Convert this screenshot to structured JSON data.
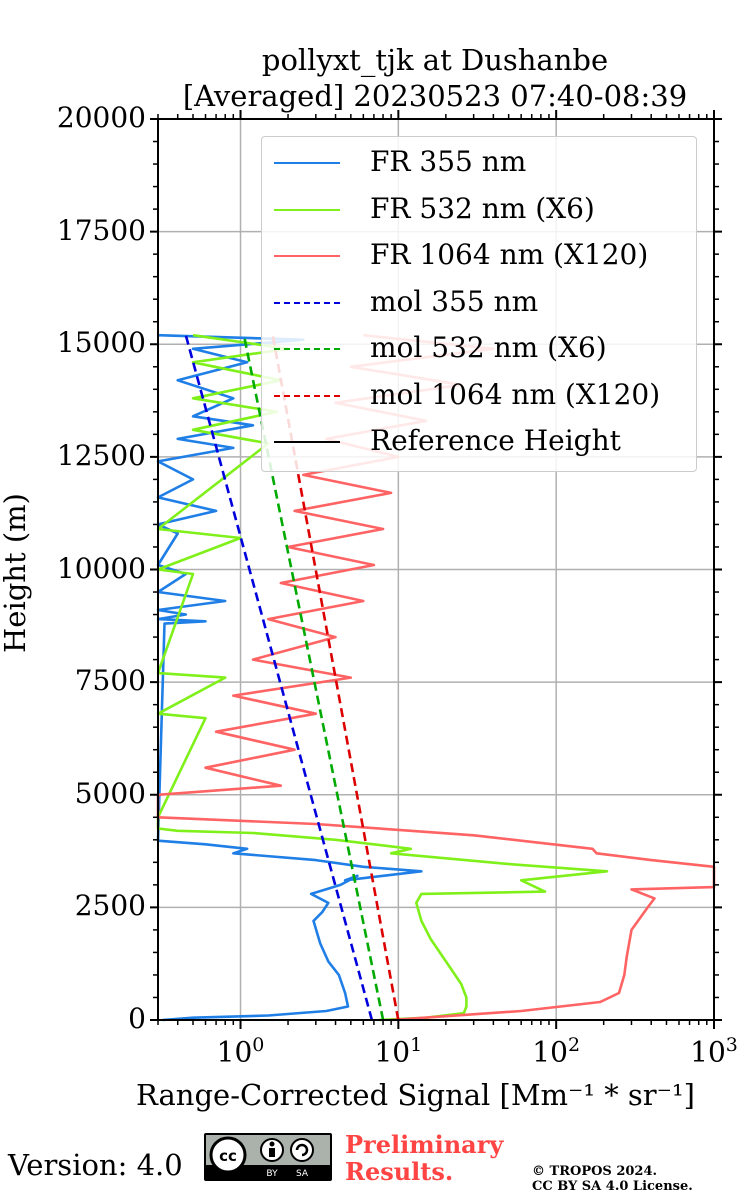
{
  "chart_data": {
    "type": "line",
    "title_line1": "pollyxt_tjk at Dushanbe",
    "title_line2": "[Averaged] 20230523 07:40-08:39",
    "xlabel": "Range-Corrected Signal [Mm⁻¹ * sr⁻¹]",
    "ylabel": "Height (m)",
    "xscale": "log",
    "xlim": [
      0.3,
      1000
    ],
    "ylim": [
      0,
      20000
    ],
    "grid": true,
    "legend_position": "top-right",
    "yticks": [
      "0",
      "2500",
      "5000",
      "7500",
      "10000",
      "12500",
      "15000",
      "17500",
      "20000"
    ],
    "ytick_values": [
      0,
      2500,
      5000,
      7500,
      10000,
      12500,
      15000,
      17500,
      20000
    ],
    "xticks": [
      {
        "base": "10",
        "exp": "0",
        "value": 1
      },
      {
        "base": "10",
        "exp": "1",
        "value": 10
      },
      {
        "base": "10",
        "exp": "2",
        "value": 100
      },
      {
        "base": "10",
        "exp": "3",
        "value": 1000
      }
    ],
    "series": [
      {
        "name": "FR 355 nm",
        "color": "#1f7fe6",
        "style": "solid",
        "points": [
          [
            0.32,
            0
          ],
          [
            0.5,
            50
          ],
          [
            1.5,
            100
          ],
          [
            3.5,
            200
          ],
          [
            4.8,
            300
          ],
          [
            4.6,
            600
          ],
          [
            4.2,
            1000
          ],
          [
            3.6,
            1300
          ],
          [
            3.2,
            1700
          ],
          [
            2.9,
            2200
          ],
          [
            3.3,
            2400
          ],
          [
            3.6,
            2600
          ],
          [
            2.8,
            2800
          ],
          [
            4.3,
            3000
          ],
          [
            5.5,
            3200
          ],
          [
            4.6,
            3100
          ],
          [
            14,
            3300
          ],
          [
            6,
            3400
          ],
          [
            3,
            3550
          ],
          [
            0.9,
            3700
          ],
          [
            1.1,
            3800
          ],
          [
            0.6,
            3900
          ],
          [
            0.3,
            3980
          ],
          [
            0.33,
            8800
          ],
          [
            0.6,
            8850
          ],
          [
            0.3,
            8900
          ],
          [
            0.45,
            9000
          ],
          [
            0.3,
            9100
          ],
          [
            0.8,
            9300
          ],
          [
            0.3,
            9500
          ],
          [
            0.45,
            9900
          ],
          [
            0.3,
            10100
          ],
          [
            0.4,
            10800
          ],
          [
            0.3,
            11000
          ],
          [
            0.7,
            11300
          ],
          [
            0.3,
            11600
          ],
          [
            0.5,
            12000
          ],
          [
            0.3,
            12400
          ],
          [
            0.9,
            12700
          ],
          [
            0.4,
            12900
          ],
          [
            1.2,
            13200
          ],
          [
            0.5,
            13400
          ],
          [
            0.9,
            13800
          ],
          [
            0.4,
            14200
          ],
          [
            1.1,
            14600
          ],
          [
            0.5,
            14900
          ],
          [
            2.5,
            15100
          ],
          [
            0.3,
            15200
          ]
        ]
      },
      {
        "name": "FR 532 nm (X6)",
        "color": "#80f01a",
        "style": "solid",
        "points": [
          [
            7.5,
            0
          ],
          [
            15,
            50
          ],
          [
            26,
            150
          ],
          [
            27,
            300
          ],
          [
            27,
            500
          ],
          [
            25,
            800
          ],
          [
            20,
            1300
          ],
          [
            16,
            1800
          ],
          [
            14,
            2200
          ],
          [
            13,
            2600
          ],
          [
            14,
            2800
          ],
          [
            85,
            2850
          ],
          [
            60,
            3100
          ],
          [
            210,
            3300
          ],
          [
            55,
            3450
          ],
          [
            9,
            3700
          ],
          [
            12,
            3800
          ],
          [
            4,
            4000
          ],
          [
            1.2,
            4150
          ],
          [
            0.4,
            4200
          ],
          [
            0.3,
            4250
          ],
          [
            0.3,
            4500
          ],
          [
            0.6,
            6700
          ],
          [
            0.3,
            6800
          ],
          [
            0.8,
            7600
          ],
          [
            0.3,
            7700
          ],
          [
            0.5,
            9900
          ],
          [
            0.3,
            10000
          ],
          [
            1.0,
            10700
          ],
          [
            0.3,
            10900
          ],
          [
            1.5,
            12800
          ],
          [
            0.5,
            13100
          ],
          [
            1.7,
            13500
          ],
          [
            0.5,
            13800
          ],
          [
            1.8,
            14200
          ],
          [
            0.5,
            14600
          ],
          [
            2.0,
            14900
          ],
          [
            0.5,
            15200
          ]
        ]
      },
      {
        "name": "FR 1064 nm (X120)",
        "color": "#ff6363",
        "style": "solid",
        "points": [
          [
            9,
            0
          ],
          [
            60,
            200
          ],
          [
            190,
            400
          ],
          [
            250,
            600
          ],
          [
            270,
            1000
          ],
          [
            280,
            1400
          ],
          [
            300,
            2000
          ],
          [
            380,
            2500
          ],
          [
            420,
            2700
          ],
          [
            300,
            2900
          ],
          [
            1000,
            2950
          ],
          [
            1000,
            3400
          ],
          [
            400,
            3550
          ],
          [
            180,
            3700
          ],
          [
            170,
            3800
          ],
          [
            30,
            4100
          ],
          [
            12,
            4200
          ],
          [
            3,
            4350
          ],
          [
            0.3,
            4500
          ],
          [
            0.3,
            5000
          ],
          [
            1.8,
            5200
          ],
          [
            0.6,
            5600
          ],
          [
            2.2,
            6000
          ],
          [
            0.7,
            6400
          ],
          [
            3.0,
            6800
          ],
          [
            0.9,
            7200
          ],
          [
            5.0,
            7600
          ],
          [
            1.2,
            8000
          ],
          [
            4.0,
            8500
          ],
          [
            1.5,
            8900
          ],
          [
            6.0,
            9300
          ],
          [
            1.8,
            9700
          ],
          [
            7.0,
            10100
          ],
          [
            2.0,
            10500
          ],
          [
            8.0,
            10900
          ],
          [
            2.2,
            11300
          ],
          [
            9.0,
            11700
          ],
          [
            2.5,
            12100
          ],
          [
            10,
            12500
          ],
          [
            3.5,
            12900
          ],
          [
            15,
            13300
          ],
          [
            4,
            13700
          ],
          [
            25,
            14100
          ],
          [
            5,
            14500
          ],
          [
            40,
            14900
          ],
          [
            6,
            15200
          ]
        ]
      },
      {
        "name": "mol 355 nm",
        "color": "#0000dd",
        "style": "dashed",
        "points": [
          [
            6.8,
            0
          ],
          [
            0.45,
            15200
          ]
        ]
      },
      {
        "name": "mol 532 nm (X6)",
        "color": "#00aa00",
        "style": "dashed",
        "points": [
          [
            8.0,
            0
          ],
          [
            1.05,
            15200
          ]
        ]
      },
      {
        "name": "mol 1064 nm (X120)",
        "color": "#dd0000",
        "style": "dashed",
        "points": [
          [
            10.0,
            0
          ],
          [
            1.6,
            15200
          ]
        ]
      },
      {
        "name": "Reference Height",
        "color": "#000000",
        "style": "solid",
        "points": []
      }
    ]
  },
  "footer": {
    "version": "Version: 4.0",
    "license_badge": [
      "cc",
      "by",
      "sa"
    ],
    "preliminary_line1": "Preliminary",
    "preliminary_line2": "Results.",
    "copyright_line1": "© TROPOS 2024.",
    "copyright_line2": "CC BY SA 4.0 License."
  }
}
